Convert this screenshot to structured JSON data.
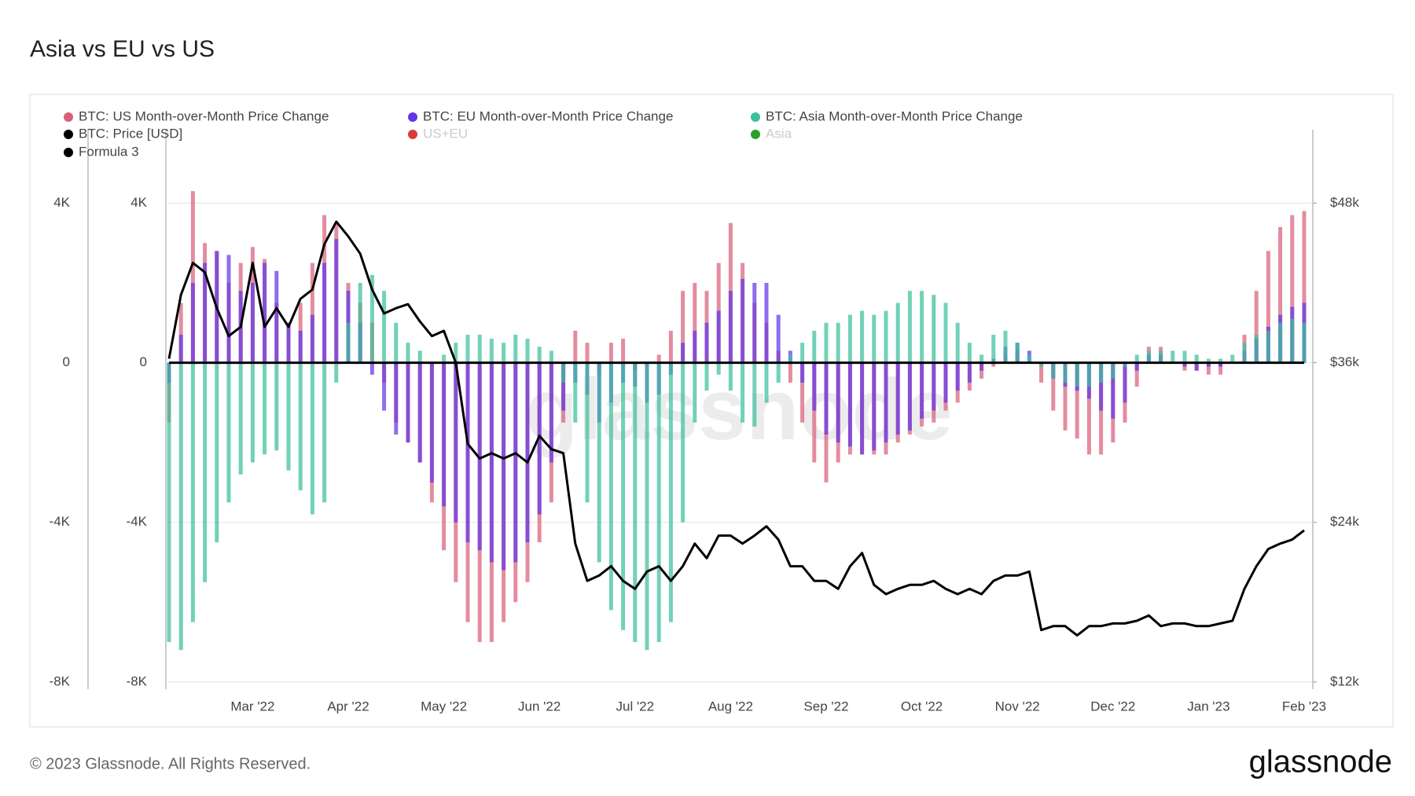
{
  "chart_data": {
    "type": "bar",
    "title": "Asia vs EU vs US",
    "watermark": "glassnode",
    "categories": [
      null,
      null,
      null,
      null,
      null,
      null,
      null,
      "Mar '22",
      null,
      null,
      null,
      null,
      null,
      null,
      null,
      "Apr '22",
      null,
      null,
      null,
      null,
      null,
      null,
      null,
      "May '22",
      null,
      null,
      null,
      null,
      null,
      null,
      null,
      "Jun '22",
      null,
      null,
      null,
      null,
      null,
      null,
      null,
      "Jul '22",
      null,
      null,
      null,
      null,
      null,
      null,
      null,
      "Aug '22",
      null,
      null,
      null,
      null,
      null,
      null,
      null,
      "Sep '22",
      null,
      null,
      null,
      null,
      null,
      null,
      null,
      "Oct '22",
      null,
      null,
      null,
      null,
      null,
      null,
      null,
      "Nov '22",
      null,
      null,
      null,
      null,
      null,
      null,
      null,
      "Dec '22",
      null,
      null,
      null,
      null,
      null,
      null,
      null,
      "Jan '23",
      null,
      null,
      null,
      null,
      null,
      null,
      null,
      "Feb '23"
    ],
    "series": [
      {
        "name": "BTC: US Month-over-Month Price Change",
        "color": "#d9607a",
        "type": "bar",
        "values": [
          -1500,
          1500,
          4300,
          3000,
          2800,
          2000,
          2500,
          2900,
          2600,
          1500,
          1000,
          1500,
          2500,
          3700,
          3500,
          2000,
          1500,
          1000,
          -500,
          -1500,
          -2000,
          -2500,
          -3500,
          -4700,
          -5500,
          -6500,
          -7000,
          -7000,
          -6500,
          -6000,
          -5500,
          -4500,
          -3500,
          -1500,
          800,
          500,
          -300,
          500,
          600,
          -200,
          -100,
          200,
          800,
          1800,
          2000,
          1800,
          2500,
          3500,
          2500,
          1500,
          1000,
          300,
          -500,
          -1500,
          -2500,
          -3000,
          -2500,
          -2300,
          -2300,
          -2300,
          -2300,
          -2000,
          -1800,
          -1600,
          -1500,
          -1200,
          -1000,
          -700,
          -400,
          -100,
          200,
          300,
          0,
          -500,
          -1200,
          -1700,
          -1900,
          -2300,
          -2300,
          -2000,
          -1500,
          -600,
          400,
          400,
          0,
          -200,
          -200,
          -300,
          -300,
          0,
          700,
          1800,
          2800,
          3400,
          3700,
          3800
        ]
      },
      {
        "name": "BTC: EU Month-over-Month Price Change",
        "color": "#6236e8",
        "type": "bar",
        "values": [
          -500,
          700,
          2000,
          2500,
          2800,
          2700,
          1800,
          2000,
          2500,
          2300,
          1000,
          800,
          1200,
          2500,
          3100,
          1800,
          1000,
          -300,
          -1200,
          -1800,
          -2000,
          -2500,
          -3000,
          -3600,
          -4000,
          -4500,
          -4700,
          -5000,
          -5200,
          -5000,
          -4500,
          -3800,
          -2500,
          -1200,
          -500,
          -800,
          -1500,
          -1000,
          -500,
          -600,
          -1000,
          -800,
          -300,
          500,
          800,
          1000,
          1300,
          1800,
          2100,
          2000,
          2000,
          1200,
          300,
          -500,
          -1200,
          -1800,
          -2000,
          -2100,
          -2300,
          -2200,
          -2000,
          -1800,
          -1700,
          -1400,
          -1200,
          -1000,
          -700,
          -500,
          -200,
          100,
          400,
          500,
          300,
          0,
          -400,
          -600,
          -700,
          -900,
          -1200,
          -1400,
          -1000,
          -200,
          200,
          200,
          0,
          -100,
          -200,
          -100,
          -100,
          0,
          300,
          600,
          900,
          1200,
          1400,
          1500
        ]
      },
      {
        "name": "BTC: Asia Month-over-Month Price Change",
        "color": "#3cbf9c",
        "type": "bar",
        "values": [
          -7000,
          -7200,
          -6500,
          -5500,
          -4500,
          -3500,
          -2800,
          -2500,
          -2300,
          -2200,
          -2700,
          -3200,
          -3800,
          -3500,
          -500,
          1000,
          2000,
          2200,
          1800,
          1000,
          500,
          300,
          0,
          200,
          500,
          700,
          700,
          600,
          500,
          700,
          600,
          400,
          300,
          -500,
          -1500,
          -3500,
          -5000,
          -6200,
          -6700,
          -7000,
          -7200,
          -7000,
          -6500,
          -4000,
          -1500,
          -700,
          -300,
          -700,
          -1500,
          -1600,
          -1000,
          -500,
          200,
          500,
          800,
          1000,
          1000,
          1200,
          1300,
          1200,
          1300,
          1500,
          1800,
          1800,
          1700,
          1500,
          1000,
          500,
          200,
          700,
          800,
          500,
          200,
          -100,
          -400,
          -500,
          -600,
          -600,
          -500,
          -400,
          -100,
          200,
          300,
          300,
          300,
          300,
          200,
          100,
          100,
          200,
          500,
          700,
          800,
          1000,
          1100,
          1000
        ]
      },
      {
        "name": "BTC: Price [USD]",
        "color": "#000000",
        "type": "line",
        "axis": "y2",
        "values": [
          36300,
          41100,
          43500,
          42800,
          40100,
          38000,
          38700,
          43500,
          38700,
          40100,
          38700,
          40800,
          41500,
          44900,
          46600,
          45500,
          44200,
          41500,
          39700,
          40100,
          40400,
          39100,
          38000,
          38400,
          36000,
          29900,
          28800,
          29200,
          28800,
          29200,
          28500,
          30500,
          29500,
          29200,
          22400,
          19600,
          20000,
          20700,
          19600,
          19000,
          20300,
          20700,
          19600,
          20700,
          22400,
          21300,
          23000,
          23000,
          22400,
          23000,
          23700,
          22700,
          20700,
          20700,
          19600,
          19600,
          19000,
          20700,
          21700,
          19300,
          18600,
          19000,
          19300,
          19300,
          19600,
          19000,
          18600,
          19000,
          18600,
          19600,
          20000,
          20000,
          20300,
          15900,
          16200,
          16200,
          15500,
          16200,
          16200,
          16400,
          16400,
          16600,
          17000,
          16200,
          16400,
          16400,
          16200,
          16200,
          16400,
          16600,
          19000,
          20700,
          22000,
          22400,
          22700,
          23400
        ]
      },
      {
        "name": "US+EU",
        "color": "#d93a3a",
        "hidden": true
      },
      {
        "name": "Asia",
        "color": "#2ca02c",
        "hidden": true
      },
      {
        "name": "Formula 3",
        "color": "#000000",
        "type": "line",
        "values": [
          0,
          0,
          0,
          0,
          0,
          0,
          0,
          0,
          0,
          0,
          0,
          0,
          0,
          0,
          0,
          0,
          0,
          0,
          0,
          0,
          0,
          0,
          0,
          0,
          0,
          0,
          0,
          0,
          0,
          0,
          0,
          0,
          0,
          0,
          0,
          0,
          0,
          0,
          0,
          0,
          0,
          0,
          0,
          0,
          0,
          0,
          0,
          0,
          0,
          0,
          0,
          0,
          0,
          0,
          0,
          0,
          0,
          0,
          0,
          0,
          0,
          0,
          0,
          0,
          0,
          0,
          0,
          0,
          0,
          0,
          0,
          0,
          0,
          0,
          0,
          0,
          0,
          0,
          0,
          0,
          0,
          0,
          0,
          0,
          0,
          0,
          0,
          0,
          0,
          0,
          0,
          0,
          0,
          0,
          0,
          0
        ]
      }
    ],
    "ylim": [
      -8180,
      5840
    ],
    "yticks": [
      {
        "value": -8000,
        "label": "-8K"
      },
      {
        "value": -4000,
        "label": "-4K"
      },
      0,
      {
        "value": 4000,
        "label": "4K"
      }
    ],
    "y2lim": [
      11460,
      53520
    ],
    "y2ticks": [
      {
        "value": 12000,
        "label": "$12k"
      },
      {
        "value": 24000,
        "label": "$24k"
      },
      {
        "value": 36000,
        "label": "$36k"
      },
      {
        "value": 48000,
        "label": "$48k"
      }
    ],
    "grid": true
  },
  "footer": {
    "copyright": "© 2023 Glassnode. All Rights Reserved.",
    "logo": "glassnode"
  }
}
